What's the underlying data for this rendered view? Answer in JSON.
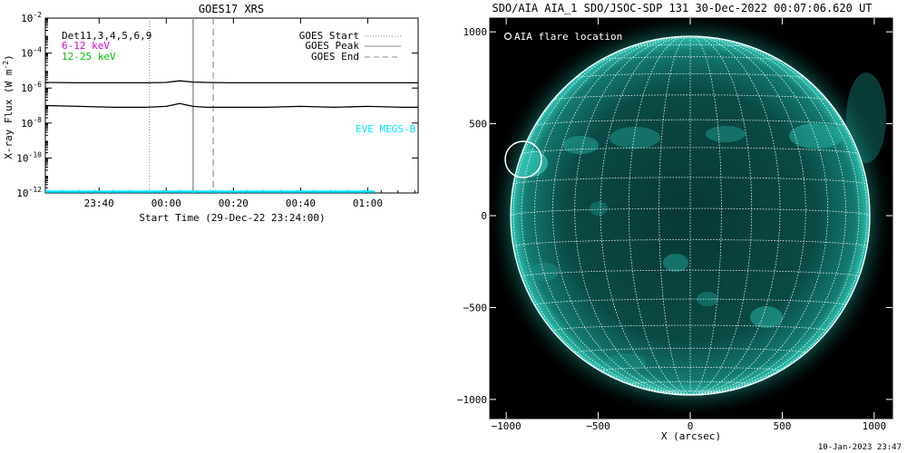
{
  "left_panel": {
    "title": "GOES17 XRS",
    "ylabel": "X-ray Flux (W m",
    "ylabel_sup": "-2",
    "ylabel_close": ")",
    "xlabel": "Start Time (29-Dec-22 23:24:00)",
    "legend_left": [
      {
        "text": "Det11,3,4,5,6,9",
        "color": "#000000"
      },
      {
        "text": "6-12 keV",
        "color": "#d000d0"
      },
      {
        "text": "12-25 keV",
        "color": "#00c000"
      }
    ],
    "legend_right": [
      {
        "text": "GOES Start",
        "style": "dotted"
      },
      {
        "text": "GOES Peak",
        "style": "solid"
      },
      {
        "text": "GOES End",
        "style": "dashed"
      }
    ],
    "eve_label": "EVE MEGS-B",
    "eve_color": "#00e5ff"
  },
  "right_panel": {
    "title": "SDO/AIA AIA_1 SDO/JSOC-SDP 131 30-Dec-2022 00:07:06.620 UT",
    "flare_legend": "AIA flare location",
    "xlabel": "X (arcsec)",
    "sun_color": "#1aa89a"
  },
  "footer": {
    "timestamp": "10-Jan-2023 23:47"
  },
  "chart_data": [
    {
      "type": "line",
      "title": "GOES17 XRS",
      "xlabel": "Start Time (29-Dec-22 23:24:00)",
      "ylabel": "X-ray Flux (W m^-2)",
      "y_scale": "log",
      "ylim": [
        1e-12,
        0.01
      ],
      "xlim_minutes_after_start": [
        0,
        111
      ],
      "x_ticks": [
        {
          "minute": 16,
          "label": "23:40"
        },
        {
          "minute": 36,
          "label": "00:00"
        },
        {
          "minute": 56,
          "label": "00:20"
        },
        {
          "minute": 76,
          "label": "00:40"
        },
        {
          "minute": 96,
          "label": "01:00"
        }
      ],
      "y_ticks": [
        {
          "value": 1e-12,
          "mantissa": "10",
          "exp": "-12"
        },
        {
          "value": 1e-10,
          "mantissa": "10",
          "exp": "-10"
        },
        {
          "value": 1e-08,
          "mantissa": "10",
          "exp": "-8"
        },
        {
          "value": 1e-06,
          "mantissa": "10",
          "exp": "-6"
        },
        {
          "value": 0.0001,
          "mantissa": "10",
          "exp": "-4"
        },
        {
          "value": 0.01,
          "mantissa": "10",
          "exp": "-2"
        }
      ],
      "series": [
        {
          "name": "GOES long channel",
          "color": "#000000",
          "x": [
            0,
            10,
            20,
            30,
            36,
            40,
            44,
            48,
            56,
            66,
            76,
            86,
            96,
            106,
            111
          ],
          "y": [
            2.1e-06,
            2e-06,
            2e-06,
            2e-06,
            2.1e-06,
            2.6e-06,
            2.2e-06,
            2.1e-06,
            2e-06,
            2e-06,
            2e-06,
            2e-06,
            2e-06,
            2e-06,
            2e-06
          ]
        },
        {
          "name": "GOES short channel",
          "color": "#000000",
          "x": [
            0,
            10,
            20,
            30,
            36,
            40,
            44,
            48,
            56,
            66,
            76,
            86,
            96,
            106,
            111
          ],
          "y": [
            1e-07,
            9e-08,
            8e-08,
            8e-08,
            9e-08,
            1.3e-07,
            9e-08,
            8e-08,
            8e-08,
            8e-08,
            9e-08,
            8e-08,
            9e-08,
            8e-08,
            8e-08
          ]
        },
        {
          "name": "EVE MEGS-B",
          "color": "#00e5ff",
          "x": [
            0,
            98
          ],
          "y": [
            1.2e-12,
            1.2e-12
          ]
        }
      ],
      "vertical_markers": [
        {
          "name": "GOES Start",
          "minute": 31,
          "style": "dotted",
          "color": "#999999"
        },
        {
          "name": "GOES Peak",
          "minute": 44,
          "style": "solid",
          "color": "#999999"
        },
        {
          "name": "GOES End",
          "minute": 50,
          "style": "dashed",
          "color": "#999999"
        }
      ]
    },
    {
      "type": "image",
      "title": "SDO/AIA AIA_1 SDO/JSOC-SDP 131 30-Dec-2022 00:07:06.620 UT",
      "xlabel": "X (arcsec)",
      "xlim": [
        -1150,
        1150
      ],
      "ylim": [
        -1100,
        1100
      ],
      "x_ticks": [
        -1000,
        -500,
        0,
        500,
        1000
      ],
      "y_ticks": [
        1000,
        500,
        0,
        -500,
        -1000
      ],
      "solar_radius_arcsec": 976,
      "grid": "heliographic, 10 deg",
      "flare_circle": {
        "x": -920,
        "y": 320,
        "radius": 100
      }
    }
  ]
}
